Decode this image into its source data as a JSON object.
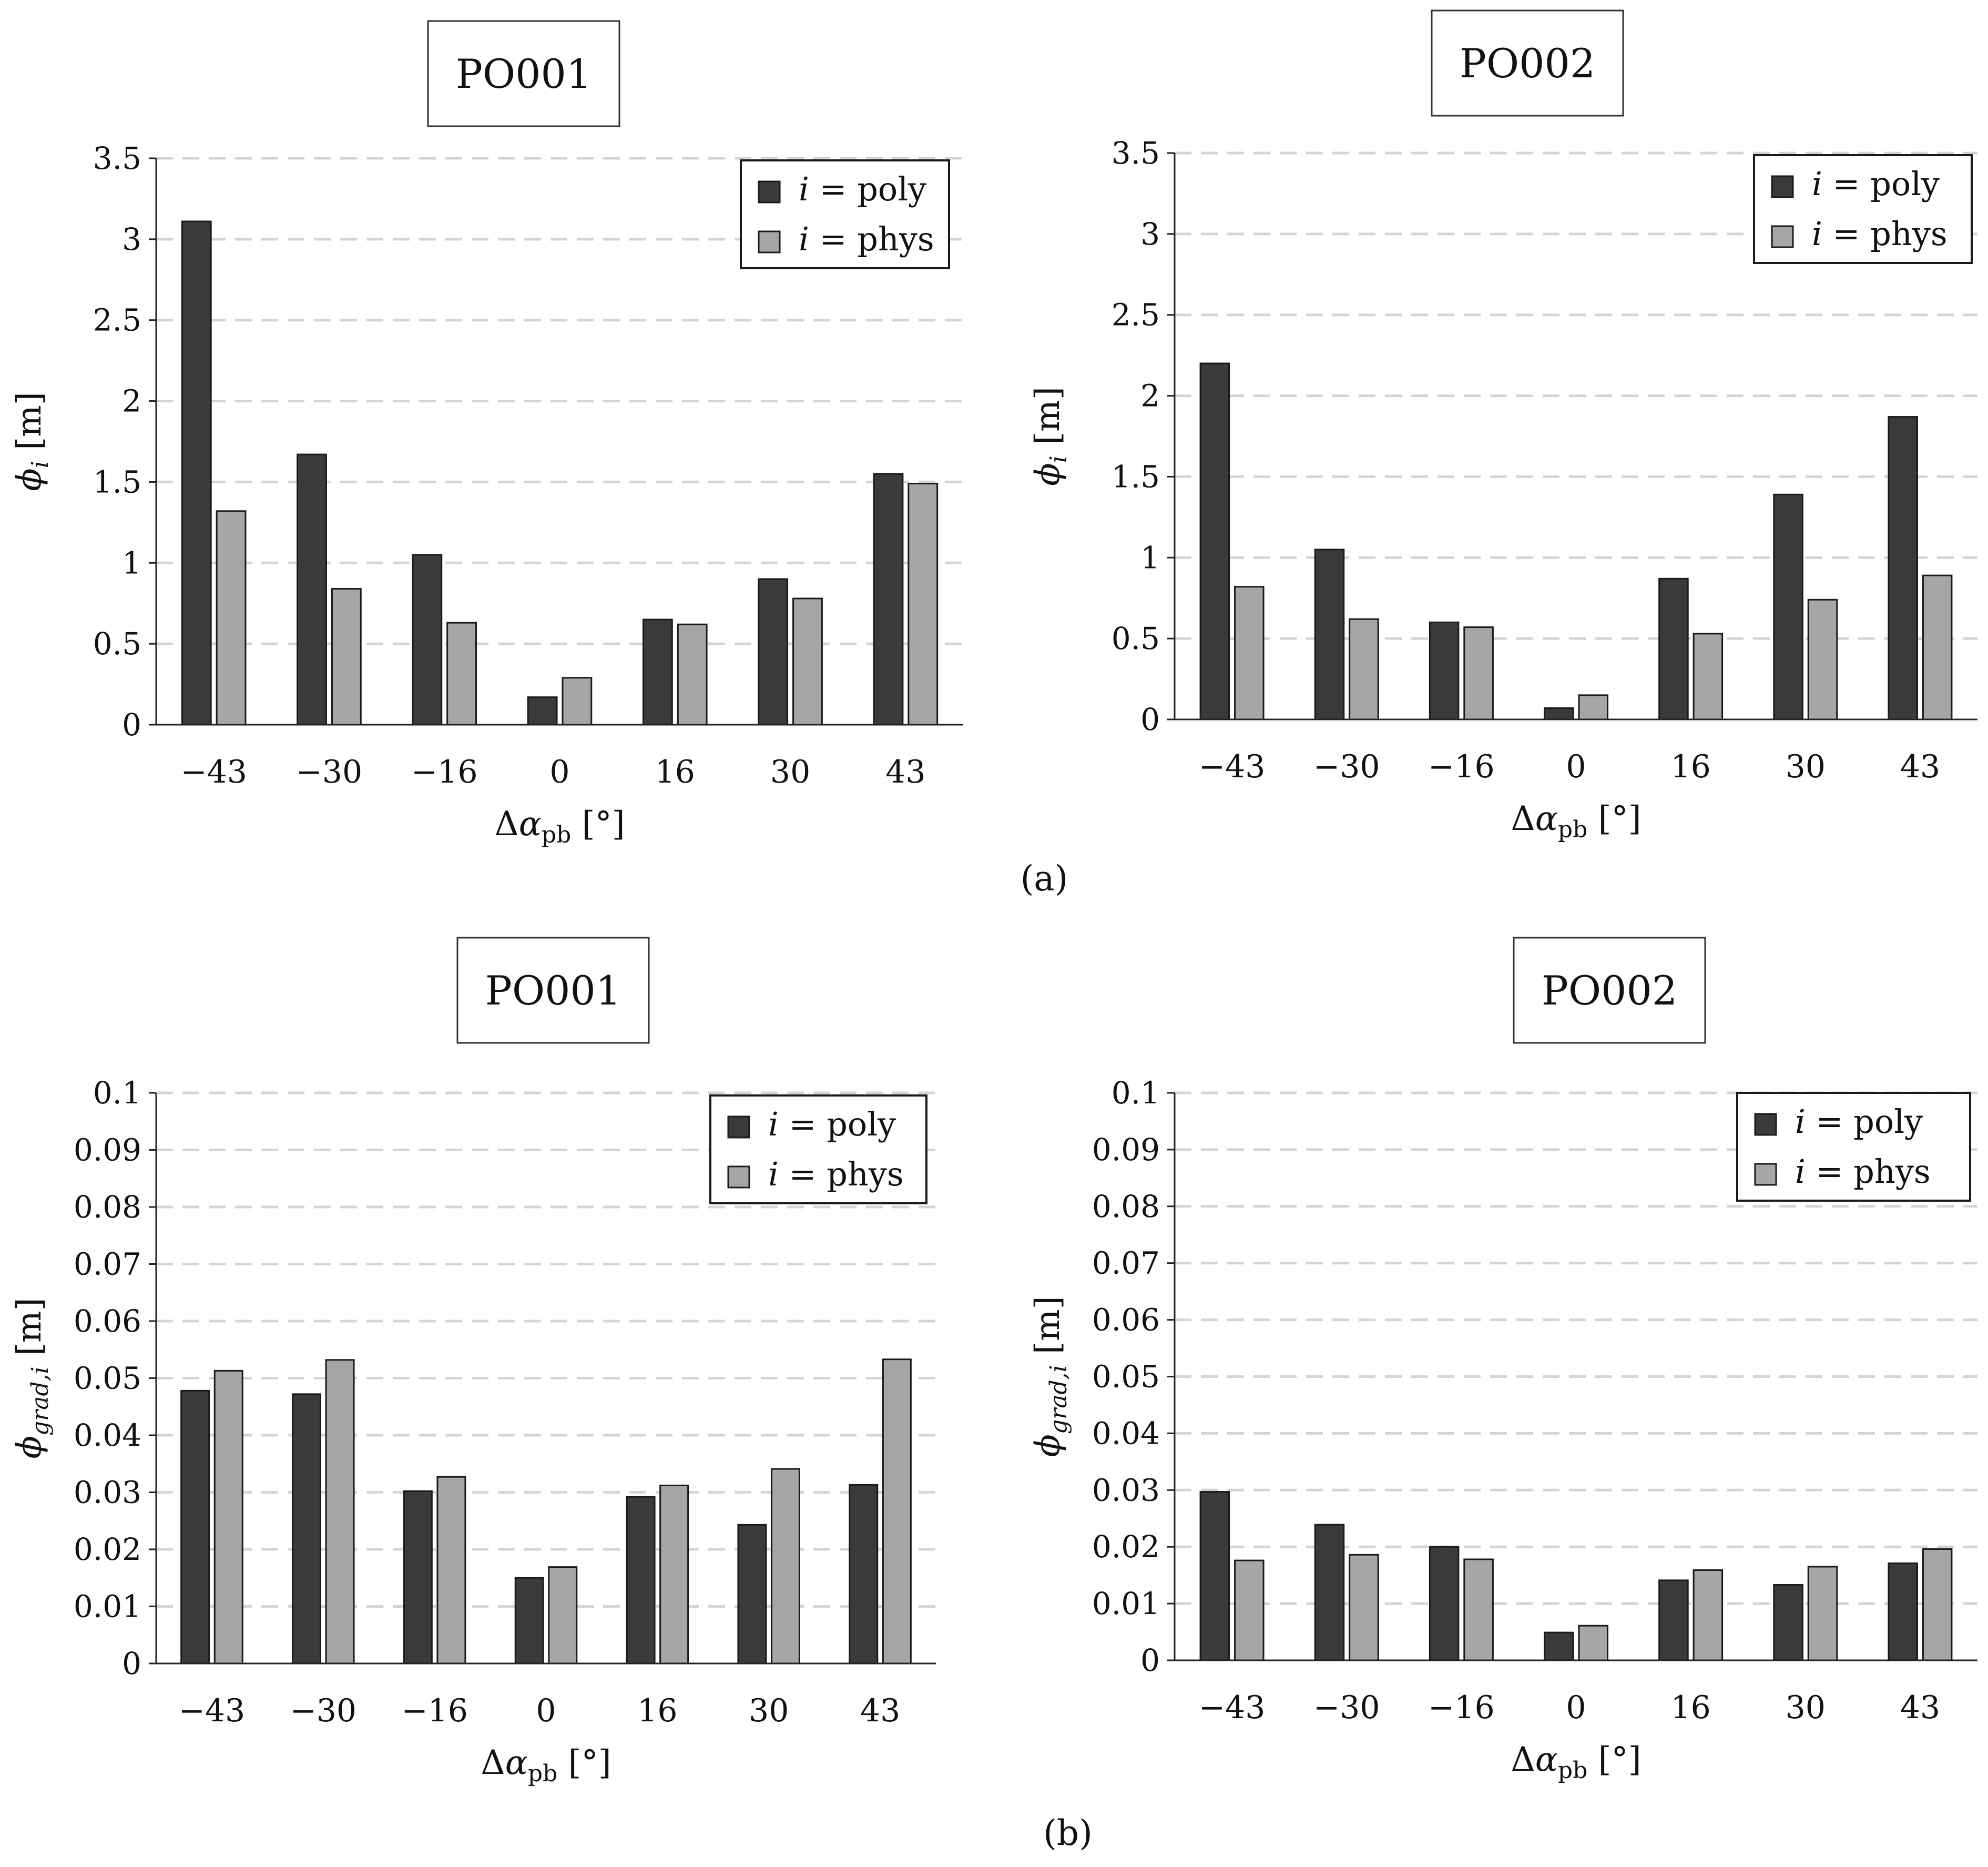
{
  "figure": {
    "caption_a": "(a)",
    "caption_b": "(b)"
  },
  "colors": {
    "poly": "#3a3a3a",
    "phys": "#a6a6a6",
    "grid": "#d4d4d4",
    "axis": "#222222"
  },
  "chart_data": [
    {
      "type": "bar",
      "title": "PO001",
      "categories": [
        "−43",
        "−30",
        "−16",
        "0",
        "16",
        "30",
        "43"
      ],
      "xlabel": {
        "base": "Δ",
        "sym": "α",
        "sub": "pb",
        "unit": " [°]"
      },
      "ylabel": {
        "sym": "ϕ",
        "sub": "i",
        "unit": " [m]"
      },
      "ylim": [
        0,
        3.5
      ],
      "yticks": [
        "0",
        "0.5",
        "1",
        "1.5",
        "2",
        "2.5",
        "3",
        "3.5"
      ],
      "grid": "horizontal dashed",
      "legend_position": "top-right",
      "series": [
        {
          "name": "i = poly",
          "legend_var": "i",
          "legend_rest": " = poly",
          "values": [
            3.11,
            1.67,
            1.05,
            0.17,
            0.65,
            0.9,
            1.55
          ]
        },
        {
          "name": "i = phys",
          "legend_var": "i",
          "legend_rest": " = phys",
          "values": [
            1.32,
            0.84,
            0.63,
            0.29,
            0.62,
            0.78,
            1.49
          ]
        }
      ]
    },
    {
      "type": "bar",
      "title": "PO002",
      "categories": [
        "−43",
        "−30",
        "−16",
        "0",
        "16",
        "30",
        "43"
      ],
      "xlabel": {
        "base": "Δ",
        "sym": "α",
        "sub": "pb",
        "unit": " [°]"
      },
      "ylabel": {
        "sym": "ϕ",
        "sub": "i",
        "unit": " [m]"
      },
      "ylim": [
        0,
        3.5
      ],
      "yticks": [
        "0",
        "0.5",
        "1",
        "1.5",
        "2",
        "2.5",
        "3",
        "3.5"
      ],
      "grid": "horizontal dashed",
      "legend_position": "top-right",
      "series": [
        {
          "name": "i = poly",
          "legend_var": "i",
          "legend_rest": " = poly",
          "values": [
            2.2,
            1.05,
            0.6,
            0.07,
            0.87,
            1.39,
            1.87
          ]
        },
        {
          "name": "i = phys",
          "legend_var": "i",
          "legend_rest": " = phys",
          "values": [
            0.82,
            0.62,
            0.57,
            0.15,
            0.53,
            0.74,
            0.89
          ]
        }
      ]
    },
    {
      "type": "bar",
      "title": "PO001",
      "categories": [
        "−43",
        "−30",
        "−16",
        "0",
        "16",
        "30",
        "43"
      ],
      "xlabel": {
        "base": "Δ",
        "sym": "α",
        "sub": "pb",
        "unit": " [°]"
      },
      "ylabel": {
        "sym": "ϕ",
        "sub": "grad,i",
        "unit": " [m]"
      },
      "ylim": [
        0,
        0.1
      ],
      "yticks": [
        "0",
        "0.01",
        "0.02",
        "0.03",
        "0.04",
        "0.05",
        "0.06",
        "0.07",
        "0.08",
        "0.09",
        "0.1"
      ],
      "grid": "horizontal dashed",
      "legend_position": "top-right",
      "series": [
        {
          "name": "i = poly",
          "legend_var": "i",
          "legend_rest": " = poly",
          "values": [
            0.0478,
            0.0472,
            0.0302,
            0.015,
            0.0292,
            0.0243,
            0.0313
          ]
        },
        {
          "name": "i = phys",
          "legend_var": "i",
          "legend_rest": " = phys",
          "values": [
            0.0513,
            0.0532,
            0.0327,
            0.0169,
            0.0312,
            0.0341,
            0.0533
          ]
        }
      ]
    },
    {
      "type": "bar",
      "title": "PO002",
      "categories": [
        "−43",
        "−30",
        "−16",
        "0",
        "16",
        "30",
        "43"
      ],
      "xlabel": {
        "base": "Δ",
        "sym": "α",
        "sub": "pb",
        "unit": " [°]"
      },
      "ylabel": {
        "sym": "ϕ",
        "sub": "grad,i",
        "unit": " [m]"
      },
      "ylim": [
        0,
        0.1
      ],
      "yticks": [
        "0",
        "0.01",
        "0.02",
        "0.03",
        "0.04",
        "0.05",
        "0.06",
        "0.07",
        "0.08",
        "0.09",
        "0.1"
      ],
      "grid": "horizontal dashed",
      "legend_position": "top-right",
      "series": [
        {
          "name": "i = poly",
          "legend_var": "i",
          "legend_rest": " = poly",
          "values": [
            0.0297,
            0.0239,
            0.02,
            0.0049,
            0.0141,
            0.0133,
            0.0171
          ]
        },
        {
          "name": "i = phys",
          "legend_var": "i",
          "legend_rest": " = phys",
          "values": [
            0.0176,
            0.0186,
            0.0178,
            0.0061,
            0.0159,
            0.0165,
            0.0196
          ]
        }
      ]
    }
  ]
}
